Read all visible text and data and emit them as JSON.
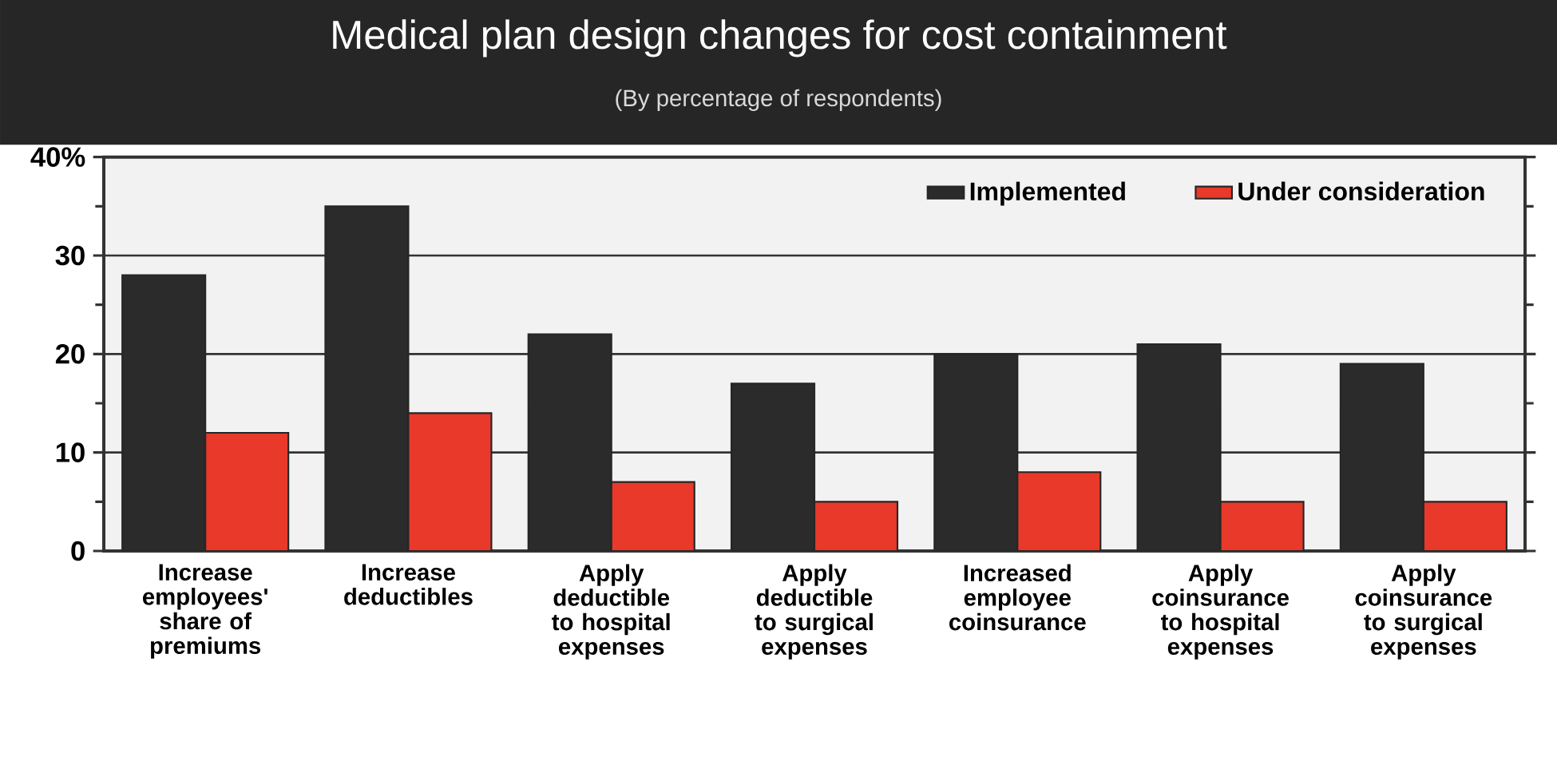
{
  "chart_data": {
    "type": "bar",
    "title": "Medical plan design changes for cost containment",
    "subtitle": "(By percentage of respondents)",
    "categories": [
      "Increase employees' share of premiums",
      "Increase deductibles",
      "Apply deductible to hospital expenses",
      "Apply deductible to surgical expenses",
      "Increased employee coinsurance",
      "Apply coinsurance to hospital expenses",
      "Apply coinsurance to surgical expenses"
    ],
    "series": [
      {
        "name": "Implemented",
        "color": "#2b2b2b",
        "values": [
          28,
          35,
          22,
          17,
          20,
          21,
          19
        ]
      },
      {
        "name": "Under consideration",
        "color": "#e8392a",
        "values": [
          12,
          14,
          7,
          5,
          8,
          5,
          5
        ]
      }
    ],
    "ylim": [
      0,
      40
    ],
    "yticks": [
      0,
      10,
      20,
      30,
      {
        "value": 40,
        "label": "40%"
      }
    ],
    "grid": "y",
    "legend": "top right"
  }
}
